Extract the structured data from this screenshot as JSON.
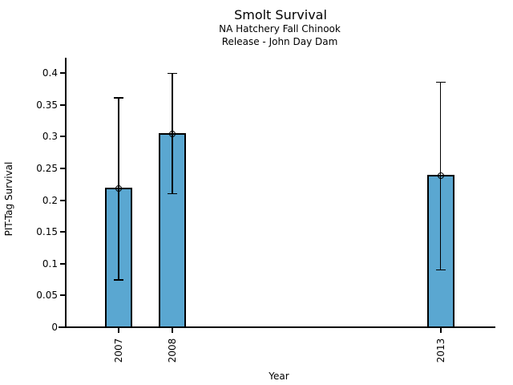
{
  "chart_data": {
    "type": "bar",
    "title": "Smolt Survival",
    "subtitle_lines": [
      "NA Hatchery Fall Chinook",
      "Release - John Day Dam"
    ],
    "xlabel": "Year",
    "ylabel": "PIT-Tag Survival",
    "categories": [
      "2007",
      "2008",
      "2013"
    ],
    "x_values": [
      2007,
      2008,
      2013
    ],
    "series": [
      {
        "name": "PIT-Tag Survival",
        "values": [
          0.218,
          0.304,
          0.238
        ],
        "error_low": [
          0.074,
          0.21,
          0.09
        ],
        "error_high": [
          0.361,
          0.399,
          0.385
        ]
      }
    ],
    "yticks": [
      0,
      0.05,
      0.1,
      0.15,
      0.2,
      0.25,
      0.3,
      0.35,
      0.4
    ],
    "ylim": [
      0,
      0.42
    ],
    "grid": false,
    "legend": null,
    "bar_color": "#5AA7D1",
    "bar_edge_color": "#000000",
    "error_bar_color": "#000000",
    "marker": "open-circle",
    "background_color": "#ffffff"
  }
}
